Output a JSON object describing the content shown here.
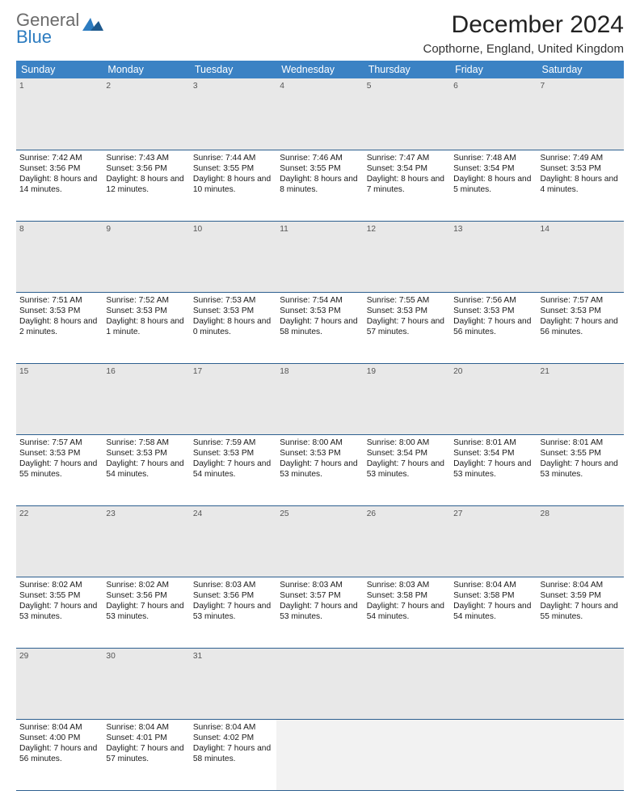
{
  "logo": {
    "line1": "General",
    "line2": "Blue"
  },
  "title": "December 2024",
  "location": "Copthorne, England, United Kingdom",
  "colors": {
    "header_bg": "#3b82c4",
    "week_bg": "#e8e8e8",
    "row_sep": "#2d5f8f",
    "page_bg": "#ffffff",
    "text": "#1a1a1a",
    "logo_gray": "#6b6b6b",
    "logo_blue": "#2d7cc0"
  },
  "daysOfWeek": [
    "Sunday",
    "Monday",
    "Tuesday",
    "Wednesday",
    "Thursday",
    "Friday",
    "Saturday"
  ],
  "weeks": [
    [
      {
        "n": "1",
        "sunrise": "7:42 AM",
        "sunset": "3:56 PM",
        "daylight": "8 hours and 14 minutes."
      },
      {
        "n": "2",
        "sunrise": "7:43 AM",
        "sunset": "3:56 PM",
        "daylight": "8 hours and 12 minutes."
      },
      {
        "n": "3",
        "sunrise": "7:44 AM",
        "sunset": "3:55 PM",
        "daylight": "8 hours and 10 minutes."
      },
      {
        "n": "4",
        "sunrise": "7:46 AM",
        "sunset": "3:55 PM",
        "daylight": "8 hours and 8 minutes."
      },
      {
        "n": "5",
        "sunrise": "7:47 AM",
        "sunset": "3:54 PM",
        "daylight": "8 hours and 7 minutes."
      },
      {
        "n": "6",
        "sunrise": "7:48 AM",
        "sunset": "3:54 PM",
        "daylight": "8 hours and 5 minutes."
      },
      {
        "n": "7",
        "sunrise": "7:49 AM",
        "sunset": "3:53 PM",
        "daylight": "8 hours and 4 minutes."
      }
    ],
    [
      {
        "n": "8",
        "sunrise": "7:51 AM",
        "sunset": "3:53 PM",
        "daylight": "8 hours and 2 minutes."
      },
      {
        "n": "9",
        "sunrise": "7:52 AM",
        "sunset": "3:53 PM",
        "daylight": "8 hours and 1 minute."
      },
      {
        "n": "10",
        "sunrise": "7:53 AM",
        "sunset": "3:53 PM",
        "daylight": "8 hours and 0 minutes."
      },
      {
        "n": "11",
        "sunrise": "7:54 AM",
        "sunset": "3:53 PM",
        "daylight": "7 hours and 58 minutes."
      },
      {
        "n": "12",
        "sunrise": "7:55 AM",
        "sunset": "3:53 PM",
        "daylight": "7 hours and 57 minutes."
      },
      {
        "n": "13",
        "sunrise": "7:56 AM",
        "sunset": "3:53 PM",
        "daylight": "7 hours and 56 minutes."
      },
      {
        "n": "14",
        "sunrise": "7:57 AM",
        "sunset": "3:53 PM",
        "daylight": "7 hours and 56 minutes."
      }
    ],
    [
      {
        "n": "15",
        "sunrise": "7:57 AM",
        "sunset": "3:53 PM",
        "daylight": "7 hours and 55 minutes."
      },
      {
        "n": "16",
        "sunrise": "7:58 AM",
        "sunset": "3:53 PM",
        "daylight": "7 hours and 54 minutes."
      },
      {
        "n": "17",
        "sunrise": "7:59 AM",
        "sunset": "3:53 PM",
        "daylight": "7 hours and 54 minutes."
      },
      {
        "n": "18",
        "sunrise": "8:00 AM",
        "sunset": "3:53 PM",
        "daylight": "7 hours and 53 minutes."
      },
      {
        "n": "19",
        "sunrise": "8:00 AM",
        "sunset": "3:54 PM",
        "daylight": "7 hours and 53 minutes."
      },
      {
        "n": "20",
        "sunrise": "8:01 AM",
        "sunset": "3:54 PM",
        "daylight": "7 hours and 53 minutes."
      },
      {
        "n": "21",
        "sunrise": "8:01 AM",
        "sunset": "3:55 PM",
        "daylight": "7 hours and 53 minutes."
      }
    ],
    [
      {
        "n": "22",
        "sunrise": "8:02 AM",
        "sunset": "3:55 PM",
        "daylight": "7 hours and 53 minutes."
      },
      {
        "n": "23",
        "sunrise": "8:02 AM",
        "sunset": "3:56 PM",
        "daylight": "7 hours and 53 minutes."
      },
      {
        "n": "24",
        "sunrise": "8:03 AM",
        "sunset": "3:56 PM",
        "daylight": "7 hours and 53 minutes."
      },
      {
        "n": "25",
        "sunrise": "8:03 AM",
        "sunset": "3:57 PM",
        "daylight": "7 hours and 53 minutes."
      },
      {
        "n": "26",
        "sunrise": "8:03 AM",
        "sunset": "3:58 PM",
        "daylight": "7 hours and 54 minutes."
      },
      {
        "n": "27",
        "sunrise": "8:04 AM",
        "sunset": "3:58 PM",
        "daylight": "7 hours and 54 minutes."
      },
      {
        "n": "28",
        "sunrise": "8:04 AM",
        "sunset": "3:59 PM",
        "daylight": "7 hours and 55 minutes."
      }
    ],
    [
      {
        "n": "29",
        "sunrise": "8:04 AM",
        "sunset": "4:00 PM",
        "daylight": "7 hours and 56 minutes."
      },
      {
        "n": "30",
        "sunrise": "8:04 AM",
        "sunset": "4:01 PM",
        "daylight": "7 hours and 57 minutes."
      },
      {
        "n": "31",
        "sunrise": "8:04 AM",
        "sunset": "4:02 PM",
        "daylight": "7 hours and 58 minutes."
      },
      null,
      null,
      null,
      null
    ]
  ],
  "labels": {
    "sunrise": "Sunrise:",
    "sunset": "Sunset:",
    "daylight": "Daylight:"
  }
}
